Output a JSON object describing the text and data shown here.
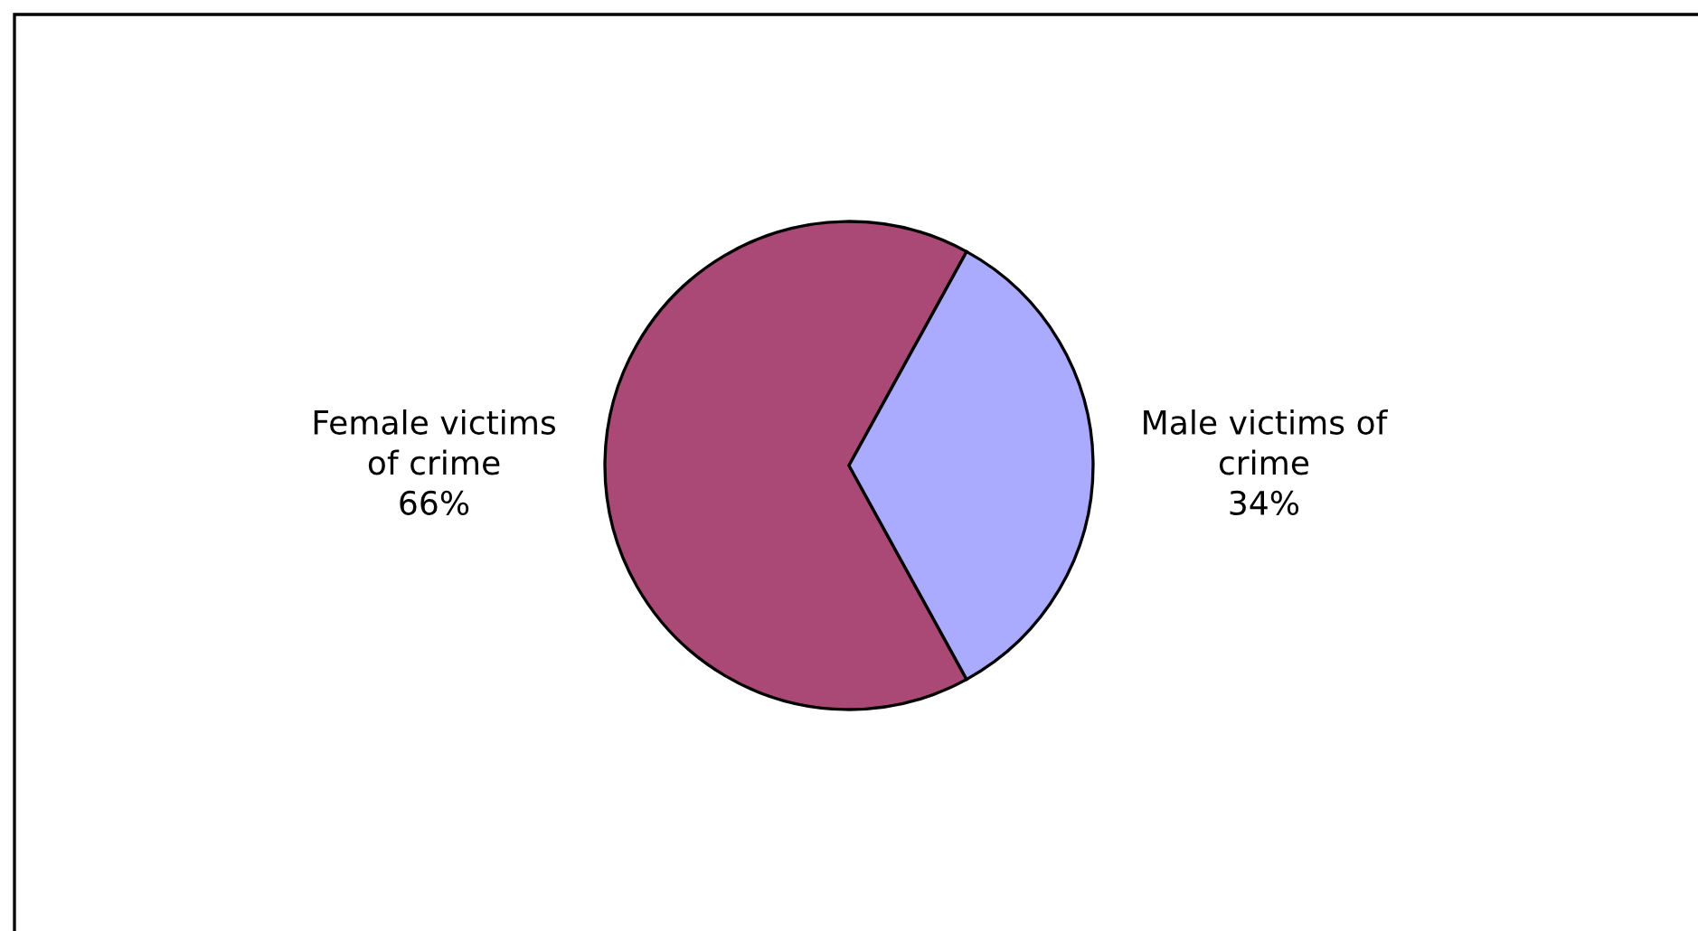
{
  "chart_data": {
    "type": "pie",
    "categories": [
      "Female victims\nof crime",
      "Male victims of\ncrime"
    ],
    "values": [
      66,
      34
    ],
    "value_labels": [
      "66%",
      "34%"
    ],
    "colors": [
      "#aa4975",
      "#aaaaff"
    ]
  }
}
